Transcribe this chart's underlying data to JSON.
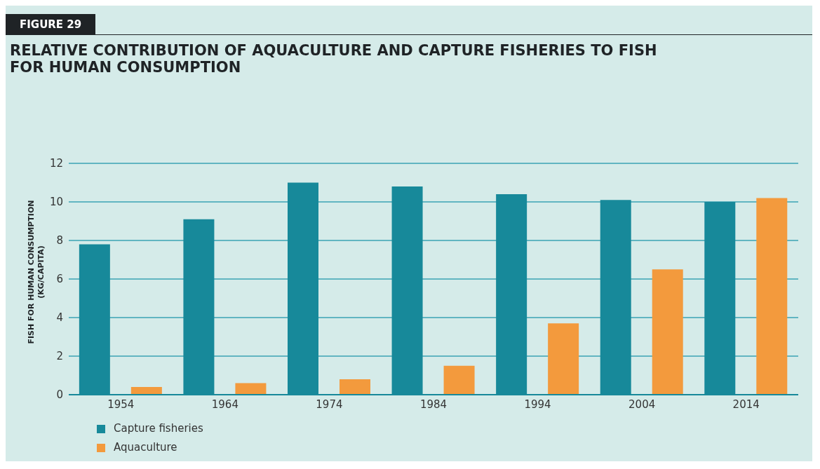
{
  "chart_data": {
    "type": "bar",
    "title": "RELATIVE CONTRIBUTION OF AQUACULTURE AND CAPTURE FISHERIES TO FISH\nFOR HUMAN CONSUMPTION",
    "annotations": [
      "FIGURE 29"
    ],
    "ylabel": "FISH FOR HUMAN CONSUMPTION\n(KG/CAPITA)",
    "categories": [
      "1954",
      "1964",
      "1974",
      "1984",
      "1994",
      "2004",
      "2014"
    ],
    "series": [
      {
        "name": "Capture fisheries",
        "color": "#17899a",
        "values": [
          7.8,
          9.1,
          11.0,
          10.8,
          10.4,
          10.1,
          10.0
        ]
      },
      {
        "name": "Aquaculture",
        "color": "#f39a3d",
        "values": [
          0.4,
          0.6,
          0.8,
          1.5,
          3.7,
          6.5,
          10.2
        ]
      }
    ],
    "ylim": [
      0,
      12
    ],
    "yticks": [
      0,
      2,
      4,
      6,
      8,
      10,
      12
    ],
    "grid": "y",
    "legend": "bottom left"
  }
}
